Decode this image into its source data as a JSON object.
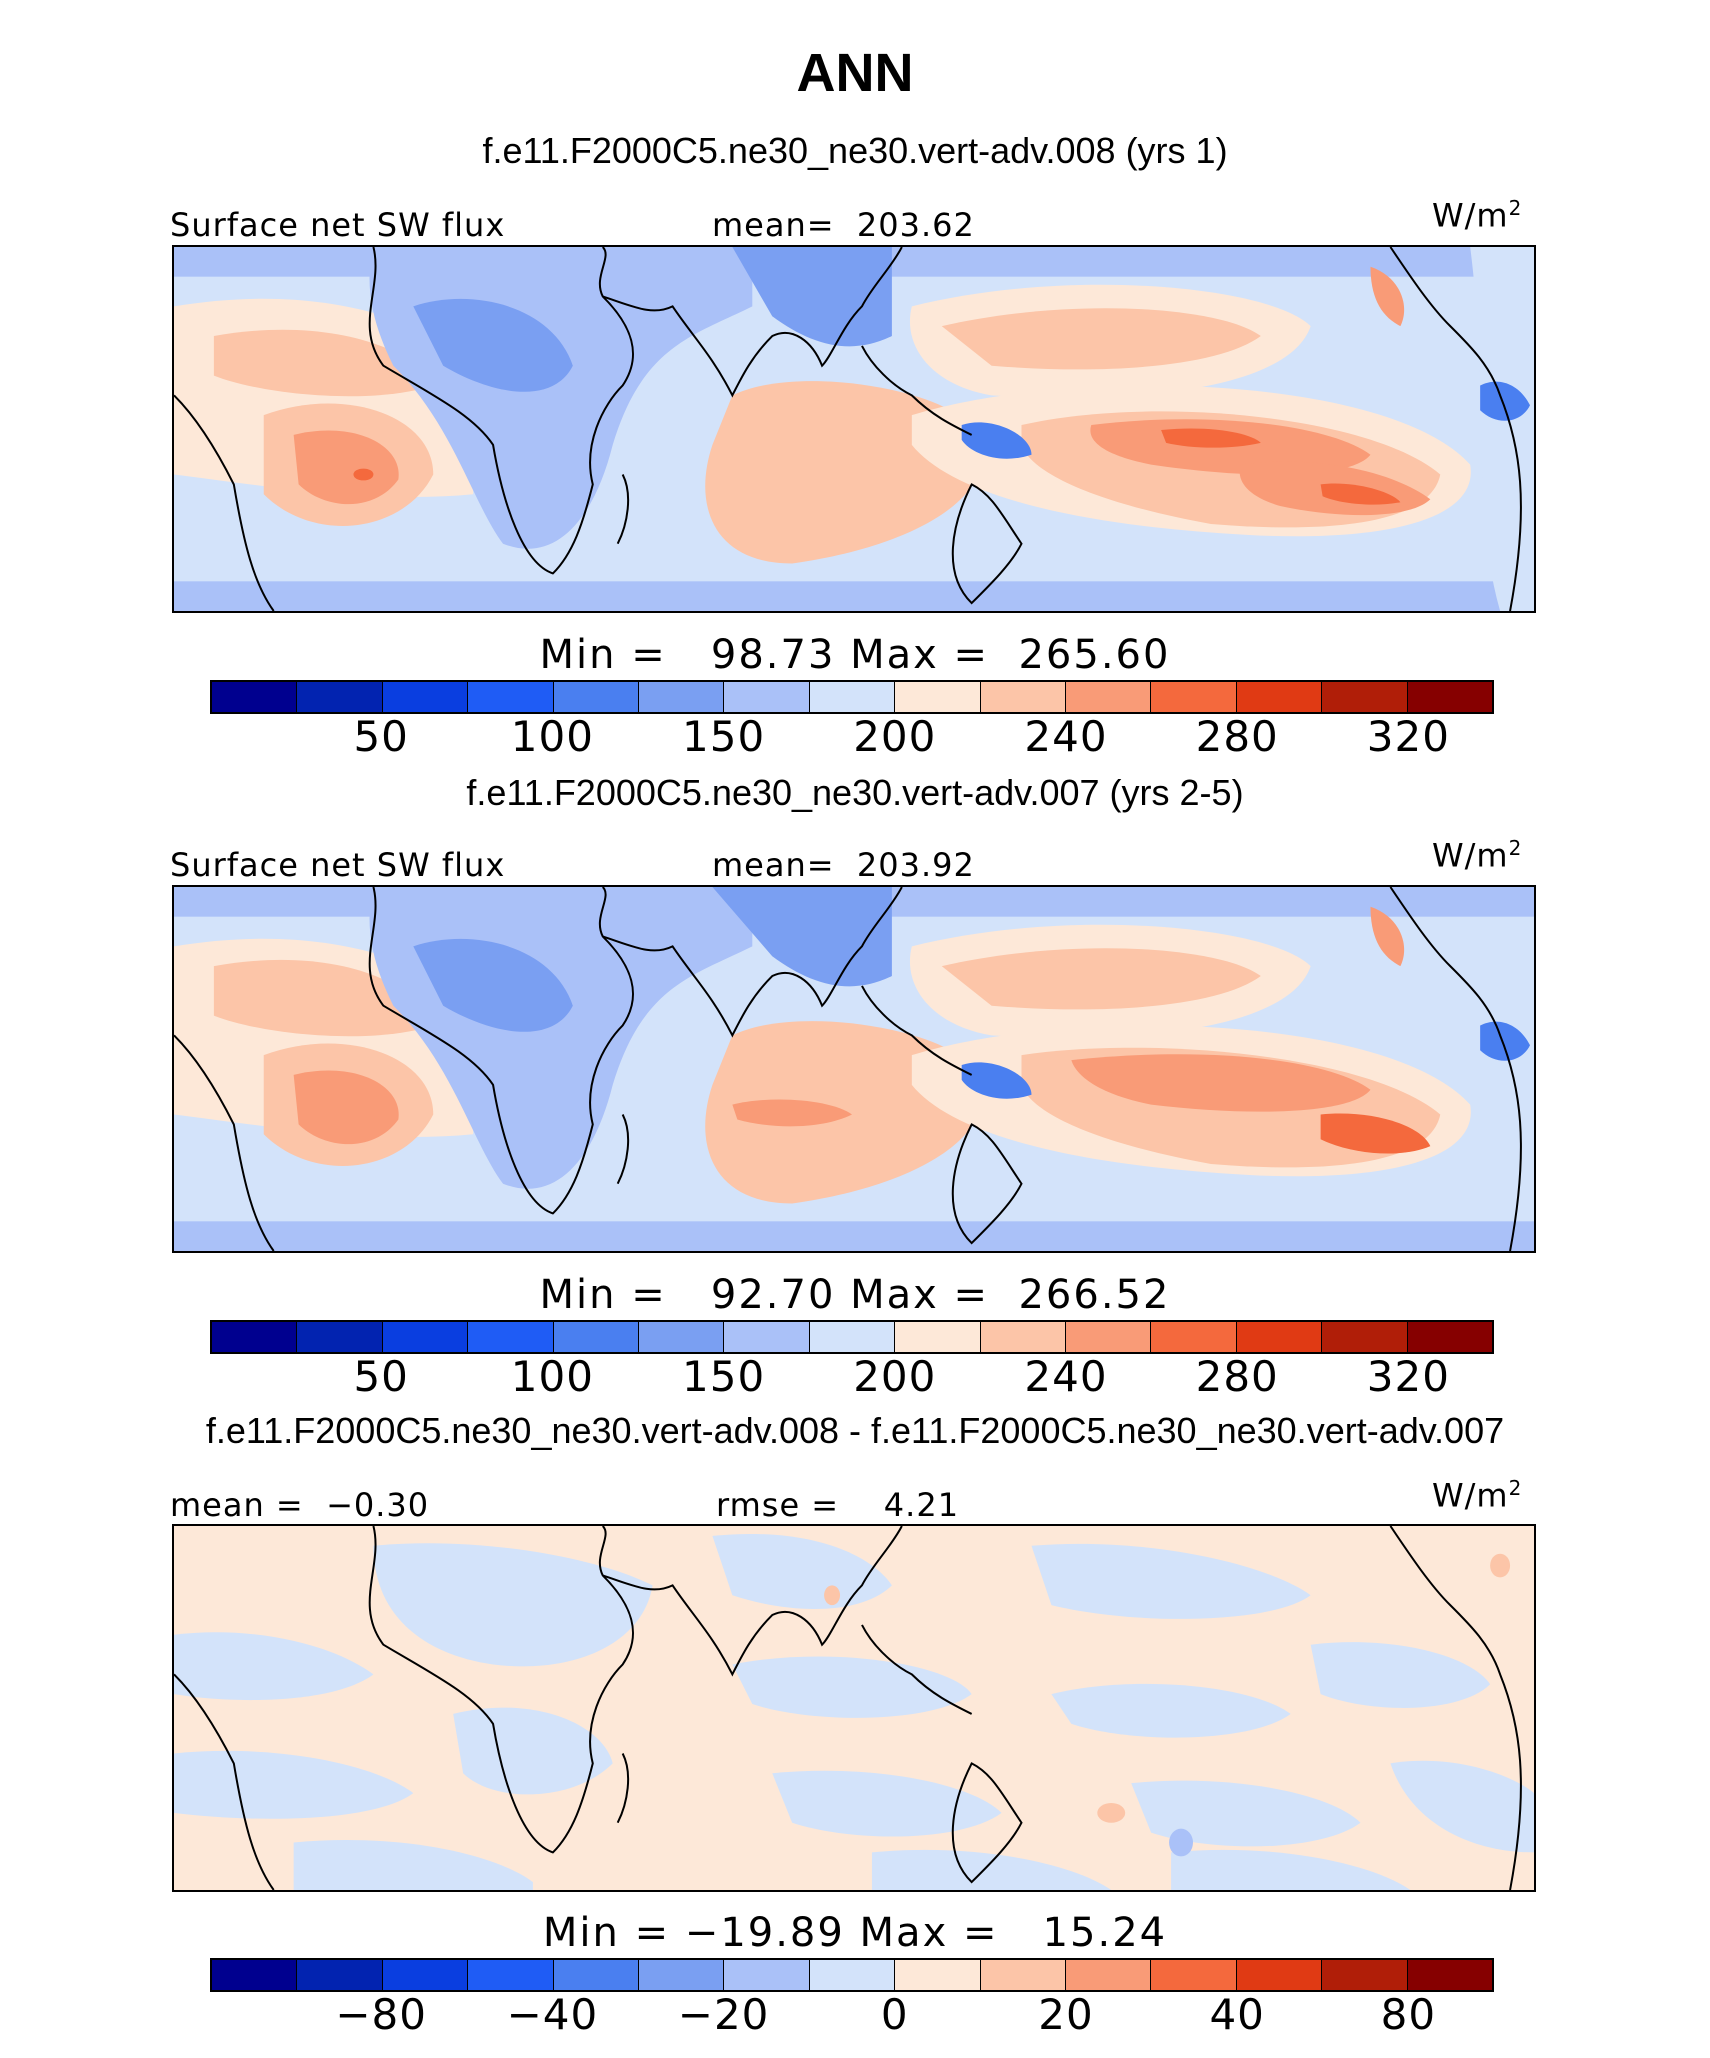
{
  "figure": {
    "title": "ANN"
  },
  "chart_data": [
    {
      "type": "heatmap",
      "panel_title": "f.e11.F2000C5.ne30_ne30.vert-adv.008 (yrs 1)",
      "left_label": "Surface net SW flux",
      "center_label": "mean=  203.62",
      "units": "W/m",
      "units_sup": "2",
      "min_max": "Min =   98.73 Max =  265.60",
      "min": 98.73,
      "max": 265.6,
      "mean": 203.62,
      "colorbar_ticks": [
        "50",
        "100",
        "150",
        "200",
        "240",
        "280",
        "320"
      ],
      "levels": [
        25,
        50,
        75,
        100,
        125,
        150,
        175,
        200,
        220,
        240,
        260,
        280,
        300,
        320,
        340
      ]
    },
    {
      "type": "heatmap",
      "panel_title": "f.e11.F2000C5.ne30_ne30.vert-adv.007 (yrs 2-5)",
      "left_label": "Surface net SW flux",
      "center_label": "mean=  203.92",
      "units": "W/m",
      "units_sup": "2",
      "min_max": "Min =   92.70 Max =  266.52",
      "min": 92.7,
      "max": 266.52,
      "mean": 203.92,
      "colorbar_ticks": [
        "50",
        "100",
        "150",
        "200",
        "240",
        "280",
        "320"
      ],
      "levels": [
        25,
        50,
        75,
        100,
        125,
        150,
        175,
        200,
        220,
        240,
        260,
        280,
        300,
        320,
        340
      ]
    },
    {
      "type": "heatmap",
      "panel_title": "f.e11.F2000C5.ne30_ne30.vert-adv.008 - f.e11.F2000C5.ne30_ne30.vert-adv.007",
      "left_label": "mean =  −0.30",
      "center_label": "rmse =    4.21",
      "units": "W/m",
      "units_sup": "2",
      "min_max": "Min = −19.89 Max =   15.24",
      "min": -19.89,
      "max": 15.24,
      "mean": -0.3,
      "rmse": 4.21,
      "colorbar_ticks": [
        "−80",
        "−40",
        "−20",
        "0",
        "20",
        "40",
        "80"
      ],
      "levels": [
        -100,
        -80,
        -60,
        -40,
        -30,
        -20,
        -10,
        0,
        10,
        20,
        30,
        40,
        60,
        80,
        100
      ]
    }
  ],
  "colorbar_colors": [
    "#00008f",
    "#0223b0",
    "#0a3ee0",
    "#1f5cf5",
    "#4a7ff0",
    "#7a9ff2",
    "#aac1f8",
    "#d3e3fa",
    "#fde8d8",
    "#fcc5a8",
    "#f99b77",
    "#f4693d",
    "#e03a14",
    "#b01e08",
    "#860000"
  ]
}
